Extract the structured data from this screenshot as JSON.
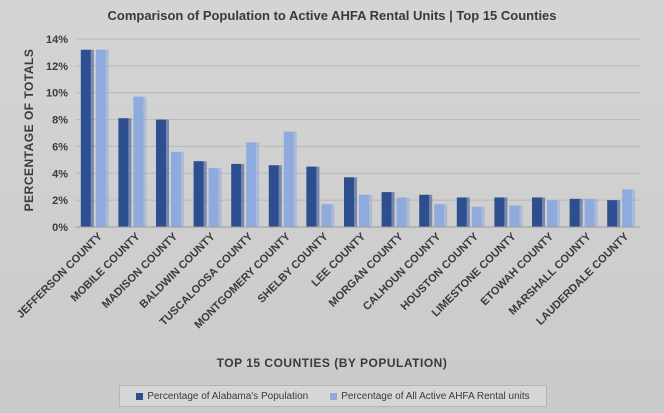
{
  "chart_data": {
    "type": "bar",
    "title": "Comparison of Population to Active AHFA Rental Units | Top 15 Counties",
    "xlabel": "TOP 15 COUNTIES (BY POPULATION)",
    "ylabel": "PERCENTAGE OF TOTALS",
    "ylim": [
      0,
      14
    ],
    "yticks": [
      "0%",
      "2%",
      "4%",
      "6%",
      "8%",
      "10%",
      "12%",
      "14%"
    ],
    "grid": true,
    "legend_position": "bottom",
    "categories": [
      "JEFFERSON COUNTY",
      "MOBILE COUNTY",
      "MADISON COUNTY",
      "BALDWIN COUNTY",
      "TUSCALOOSA COUNTY",
      "MONTGOMERY COUNTY",
      "SHELBY COUNTY",
      "LEE COUNTY",
      "MORGAN COUNTY",
      "CALHOUN COUNTY",
      "HOUSTON COUNTY",
      "LIMESTONE COUNTY",
      "ETOWAH COUNTY",
      "MARSHALL COUNTY",
      "LAUDERDALE COUNTY"
    ],
    "series": [
      {
        "name": "Percentage of Alabama's Population",
        "color": "#2e4f8f",
        "values": [
          13.2,
          8.1,
          8.0,
          4.9,
          4.7,
          4.6,
          4.5,
          3.7,
          2.6,
          2.4,
          2.2,
          2.2,
          2.2,
          2.1,
          2.0
        ]
      },
      {
        "name": "Percentage of All Active AHFA Rental units",
        "color": "#8faadc",
        "values": [
          13.2,
          9.7,
          5.6,
          4.4,
          6.3,
          7.1,
          1.7,
          2.4,
          2.2,
          1.7,
          1.5,
          1.6,
          2.0,
          2.1,
          2.8
        ]
      }
    ]
  }
}
